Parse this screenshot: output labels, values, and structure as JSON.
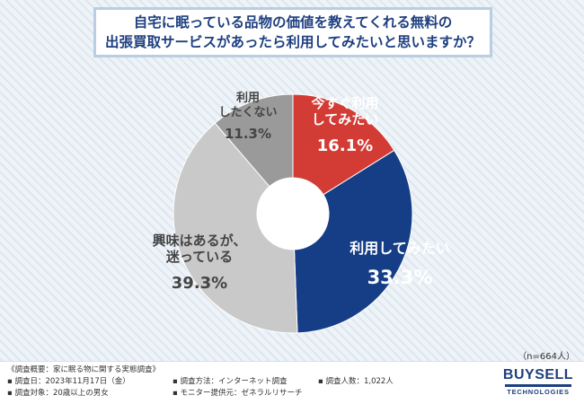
{
  "title_lines": [
    "自宅に眠っている品物の価値を教えてくれる無料の",
    "出張買取サービスがあったら利用してみたいと思いますか？"
  ],
  "chart_data": {
    "type": "pie",
    "donut": true,
    "start_angle_deg": 0,
    "direction": "clockwise",
    "slices": [
      {
        "label_lines": [
          "今すぐ利用",
          "してみたい"
        ],
        "value": 16.1,
        "value_label": "16.1%",
        "color": "#d33b35",
        "label_color": "#ffffff"
      },
      {
        "label_lines": [
          "利用してみたい"
        ],
        "value": 33.3,
        "value_label": "33.3%",
        "color": "#163e86",
        "label_color": "#ffffff"
      },
      {
        "label_lines": [
          "興味はあるが、",
          "迷っている"
        ],
        "value": 39.3,
        "value_label": "39.3%",
        "color": "#c9c9c9",
        "label_color": "#444444"
      },
      {
        "label_lines": [
          "利用",
          "したくない"
        ],
        "value": 11.3,
        "value_label": "11.3%",
        "color": "#9a9a9a",
        "label_color": "#444444"
      }
    ],
    "n_label": "（n=664人）"
  },
  "footer": {
    "survey_overview": "《調査概要：家に眠る物に関する実態調査》",
    "survey_date": "▪ 調査日：2023年11月17日（金）",
    "survey_target": "▪ 調査対象：20歳以上の男女",
    "survey_method": "▪ 調査方法：インターネット調査",
    "monitor_provider": "▪ モニター提供元：ゼネラルリサーチ",
    "survey_count": "▪ 調査人数：1,022人"
  },
  "logo": {
    "main": "BUYSELL",
    "sub": "TECHNOLOGIES",
    "color": "#1e3f80"
  }
}
